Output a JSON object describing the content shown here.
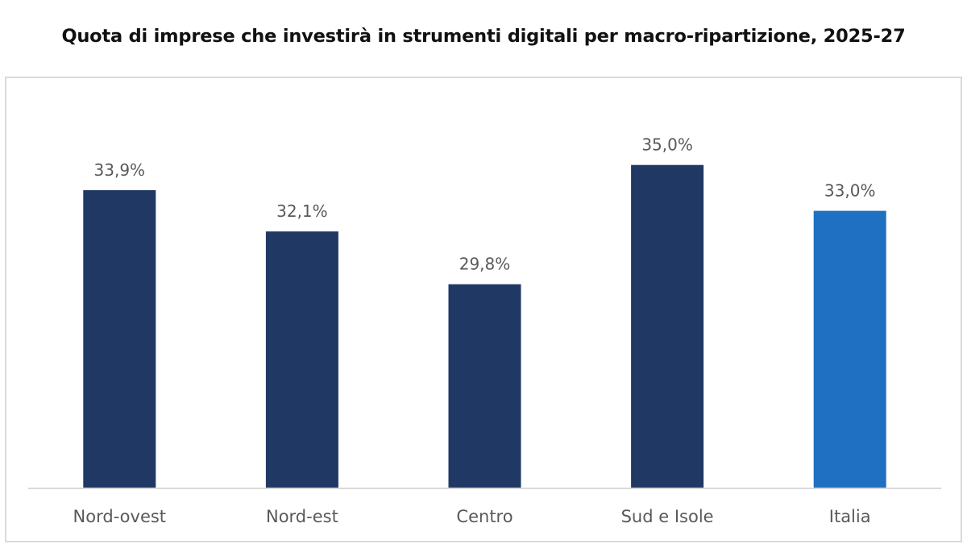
{
  "title": "Quota di imprese che investirà in strumenti digitali per macro-ripartizione, 2025-27",
  "colors": {
    "bar_default": "#1f3864",
    "bar_highlight": "#1f6fc2",
    "axis": "#d9d9d9",
    "label": "#595959"
  },
  "chart_data": {
    "type": "bar",
    "title": "Quota di imprese che investirà in strumenti digitali per macro-ripartizione, 2025-27",
    "categories": [
      "Nord-ovest",
      "Nord-est",
      "Centro",
      "Sud e Isole",
      "Italia"
    ],
    "values": [
      33.9,
      32.1,
      29.8,
      35.0,
      33.0
    ],
    "value_labels": [
      "33,9%",
      "32,1%",
      "29,8%",
      "35,0%",
      "33,0%"
    ],
    "highlight": [
      false,
      false,
      false,
      false,
      true
    ],
    "ylim": [
      20.9,
      36.5
    ],
    "grid": false,
    "legend": "none",
    "xlabel": "",
    "ylabel": ""
  }
}
